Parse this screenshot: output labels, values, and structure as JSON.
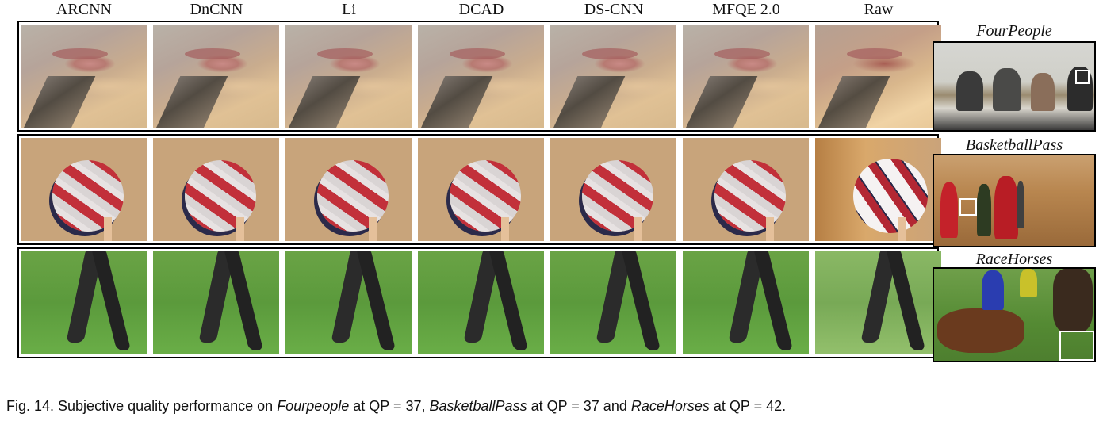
{
  "columns": [
    "ARCNN",
    "DnCNN",
    "Li",
    "DCAD",
    "DS-CNN",
    "MFQE 2.0",
    "Raw"
  ],
  "sequences": [
    "FourPeople",
    "BasketballPass",
    "RaceHorses"
  ],
  "caption": {
    "prefix": "Fig. 14. Subjective quality performance on ",
    "seq1": "Fourpeople",
    "mid1": " at QP = 37, ",
    "seq2": "BasketballPass",
    "mid2": " at QP = 37 and ",
    "seq3": "RaceHorses",
    "suffix": " at QP = 42."
  }
}
